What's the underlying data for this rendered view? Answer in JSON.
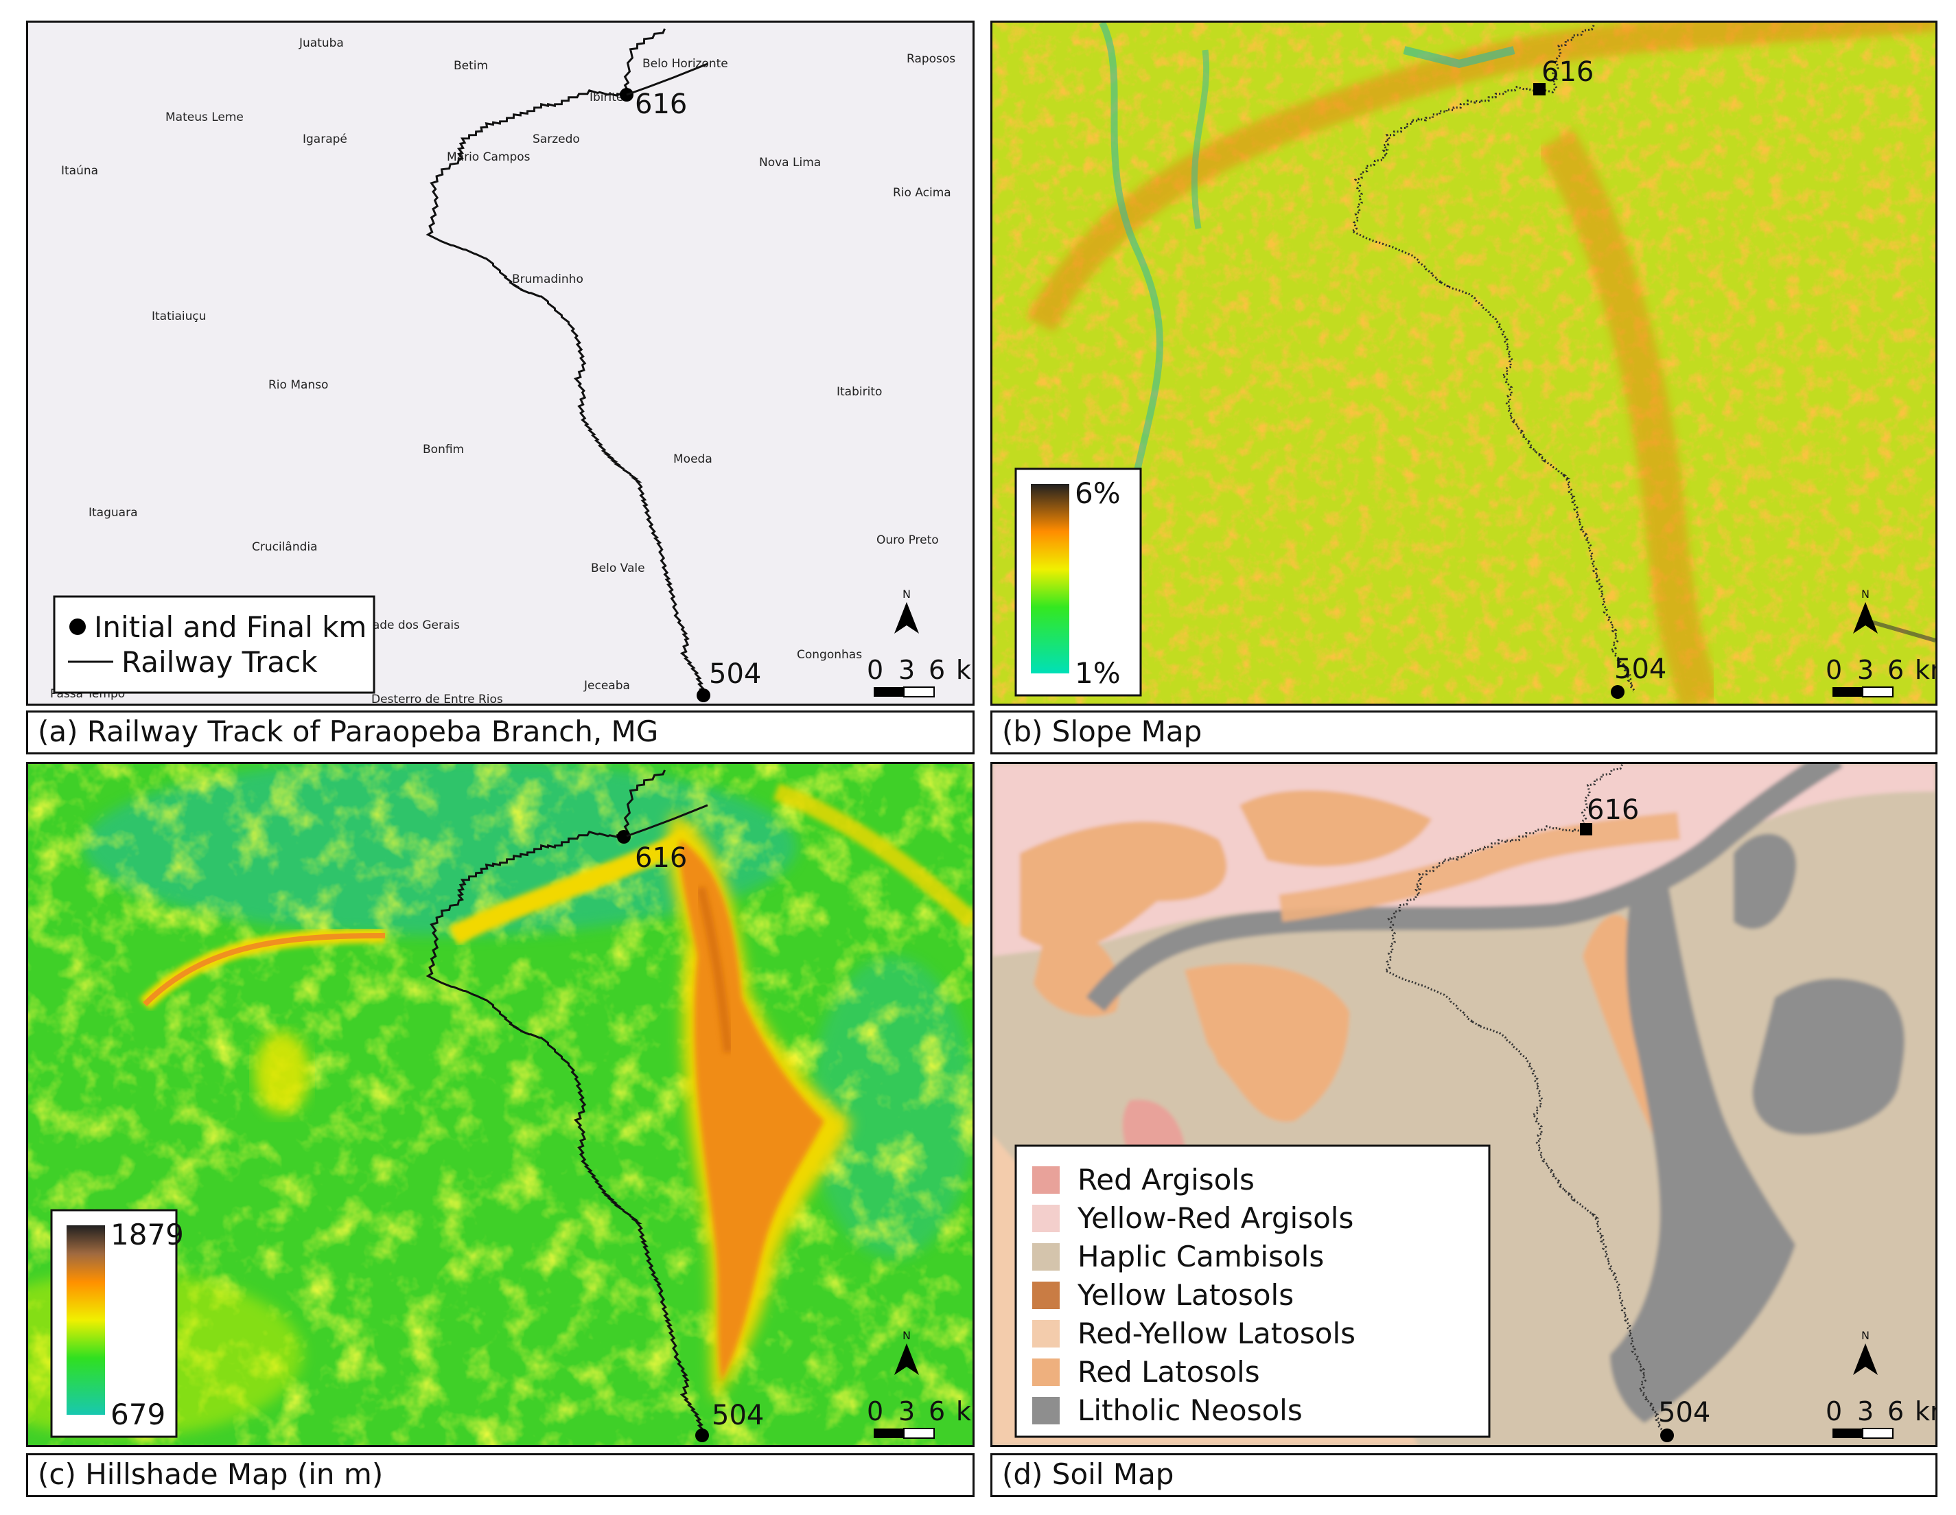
{
  "panels": {
    "a": {
      "caption": "(a) Railway Track of Paraopeba Branch, MG",
      "towns": [
        {
          "name": "Juatuba"
        },
        {
          "name": "Betim"
        },
        {
          "name": "Belo Horizonte"
        },
        {
          "name": "Raposos"
        },
        {
          "name": "Ibirité"
        },
        {
          "name": "Mateus Leme"
        },
        {
          "name": "Igarapé"
        },
        {
          "name": "Sarzedo"
        },
        {
          "name": "Itaúna"
        },
        {
          "name": "Mário Campos"
        },
        {
          "name": "Nova Lima"
        },
        {
          "name": "Rio Acima"
        },
        {
          "name": "Brumadinho"
        },
        {
          "name": "Itatiaiuçu"
        },
        {
          "name": "Rio Manso"
        },
        {
          "name": "Itabirito"
        },
        {
          "name": "Bonfim"
        },
        {
          "name": "Moeda"
        },
        {
          "name": "Itaguara"
        },
        {
          "name": "Crucilândia"
        },
        {
          "name": "Ouro Preto"
        },
        {
          "name": "Belo Vale"
        },
        {
          "name": "Piedade dos Gerais"
        },
        {
          "name": "Congonhas"
        },
        {
          "name": "Passa Tempo"
        },
        {
          "name": "Desterro de Entre Rios"
        },
        {
          "name": "Jeceaba"
        }
      ],
      "legend": {
        "point": "Initial and Final km",
        "line": "Railway Track"
      }
    },
    "b": {
      "caption": "(b) Slope Map",
      "scale_max": "6%",
      "scale_min": "1%"
    },
    "c": {
      "caption": "(c) Hillshade Map (in m)",
      "scale_max": "1879",
      "scale_min": "679"
    },
    "d": {
      "caption": "(d) Soil Map",
      "legend": [
        {
          "name": "Red Argisols",
          "color": "#e8a29a"
        },
        {
          "name": "Yellow-Red Argisols",
          "color": "#f3cfcc"
        },
        {
          "name": "Haplic Cambisols",
          "color": "#d4c4ac"
        },
        {
          "name": "Yellow Latosols",
          "color": "#c97c44"
        },
        {
          "name": "Red-Yellow Latosols",
          "color": "#f3ccac"
        },
        {
          "name": "Red Latosols",
          "color": "#eeb07e"
        },
        {
          "name": "Litholic Neosols",
          "color": "#8e8e8e"
        }
      ]
    }
  },
  "km_start": "616",
  "km_end": "504",
  "scale": {
    "t0": "0",
    "t1": "3",
    "t2": "6",
    "unit": "km"
  },
  "north": "N"
}
